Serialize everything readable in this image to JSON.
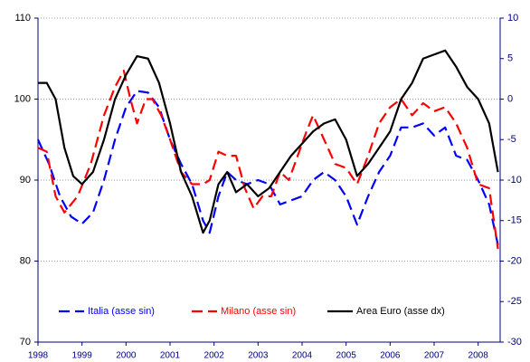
{
  "chart_data": {
    "type": "line",
    "xlim": [
      1998,
      2008.5
    ],
    "xticks": [
      1998,
      1999,
      2000,
      2001,
      2002,
      2003,
      2004,
      2005,
      2006,
      2007,
      2008
    ],
    "ylim": [
      70,
      110
    ],
    "yticks": [
      70,
      80,
      90,
      100,
      110
    ],
    "y2lim": [
      -30,
      10
    ],
    "y2ticks": [
      -30,
      -25,
      -20,
      -15,
      -10,
      -5,
      0,
      5,
      10
    ],
    "grid": true,
    "legend": "bottom",
    "series": [
      {
        "name": "Italia (asse sin)",
        "color": "#0000ff",
        "style": "dashed",
        "axis": "y",
        "x": [
          1998.0,
          1998.25,
          1998.5,
          1998.75,
          1999.0,
          1999.25,
          1999.5,
          1999.75,
          2000.0,
          2000.25,
          2000.5,
          2000.75,
          2001.0,
          2001.25,
          2001.5,
          2001.75,
          2001.9,
          2002.1,
          2002.3,
          2002.5,
          2002.75,
          2003.0,
          2003.25,
          2003.5,
          2003.75,
          2004.0,
          2004.25,
          2004.5,
          2004.75,
          2005.0,
          2005.25,
          2005.5,
          2005.75,
          2006.0,
          2006.25,
          2006.5,
          2006.75,
          2007.0,
          2007.25,
          2007.5,
          2007.75,
          2008.0,
          2008.25,
          2008.45
        ],
        "values": [
          95,
          92,
          88,
          85.5,
          84.6,
          86,
          90,
          95,
          99,
          101,
          100.8,
          99,
          95,
          92,
          89.5,
          85,
          83.5,
          88,
          91,
          90,
          89.5,
          90,
          89.5,
          87,
          87.5,
          88,
          90,
          91,
          90,
          88,
          84.5,
          88,
          91,
          93,
          96.5,
          96.5,
          97,
          95.5,
          96.5,
          93,
          92.5,
          90,
          87,
          82
        ]
      },
      {
        "name": "Milano (asse sin)",
        "color": "#ff0000",
        "style": "dashed",
        "axis": "y",
        "x": [
          1998.0,
          1998.2,
          1998.4,
          1998.6,
          1998.9,
          1999.2,
          1999.5,
          1999.75,
          1999.95,
          2000.1,
          2000.25,
          2000.45,
          2000.6,
          2000.8,
          2001.0,
          2001.25,
          2001.5,
          2001.75,
          2001.9,
          2002.1,
          2002.3,
          2002.5,
          2002.7,
          2002.9,
          2003.1,
          2003.3,
          2003.5,
          2003.7,
          2003.9,
          2004.1,
          2004.25,
          2004.5,
          2004.75,
          2005.0,
          2005.25,
          2005.5,
          2005.75,
          2006.0,
          2006.25,
          2006.5,
          2006.75,
          2007.0,
          2007.25,
          2007.5,
          2007.75,
          2008.0,
          2008.25,
          2008.45
        ],
        "values": [
          94,
          93.5,
          88,
          86,
          88,
          92,
          98,
          101.5,
          103.5,
          100,
          97,
          100,
          100,
          98,
          95,
          91,
          89.5,
          89.5,
          90,
          93.5,
          93,
          93,
          89,
          86.5,
          88,
          88,
          91,
          90,
          93,
          96,
          98,
          95,
          92,
          91.5,
          89.5,
          93,
          97,
          99,
          100,
          98,
          99.5,
          98.5,
          99,
          97,
          94,
          89.5,
          89,
          81.5
        ]
      },
      {
        "name": "Area Euro (asse dx)",
        "color": "#000000",
        "style": "solid",
        "axis": "y2",
        "x": [
          1998.0,
          1998.2,
          1998.4,
          1998.6,
          1998.8,
          1999.0,
          1999.25,
          1999.5,
          1999.75,
          2000.0,
          2000.25,
          2000.5,
          2000.75,
          2001.0,
          2001.25,
          2001.5,
          2001.75,
          2001.9,
          2002.1,
          2002.3,
          2002.5,
          2002.75,
          2003.0,
          2003.25,
          2003.5,
          2003.75,
          2004.0,
          2004.25,
          2004.5,
          2004.75,
          2005.0,
          2005.25,
          2005.5,
          2005.75,
          2006.0,
          2006.25,
          2006.5,
          2006.75,
          2007.0,
          2007.25,
          2007.5,
          2007.75,
          2008.0,
          2008.25,
          2008.45
        ],
        "values": [
          2,
          2,
          0,
          -6,
          -9.5,
          -10.5,
          -9,
          -5,
          0,
          3,
          5.3,
          5,
          2,
          -3,
          -9,
          -12,
          -16.5,
          -15,
          -10.5,
          -9,
          -11.5,
          -10.5,
          -12,
          -11,
          -9,
          -7,
          -5.5,
          -4,
          -3,
          -2.5,
          -5,
          -9.5,
          -8,
          -6,
          -4,
          0,
          2,
          5,
          5.5,
          6,
          4,
          1.5,
          0,
          -3,
          -9
        ]
      }
    ]
  }
}
